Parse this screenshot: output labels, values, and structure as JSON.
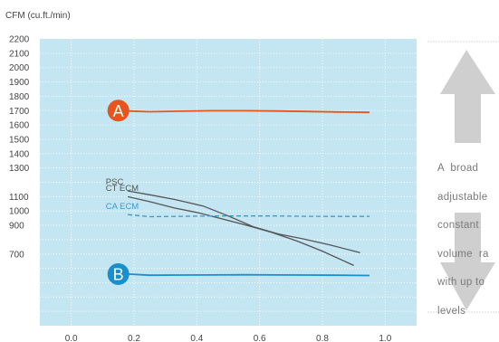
{
  "chart_data": {
    "type": "line",
    "title": "",
    "xlabel": "",
    "ylabel": "CFM (cu.ft./min)",
    "xlim": [
      -0.1,
      1.1
    ],
    "ylim": [
      200,
      2200
    ],
    "x_ticks": [
      0.0,
      0.2,
      0.4,
      0.6,
      0.8,
      1.0
    ],
    "x_tick_labels": [
      "0.0",
      "0.2",
      "0.4",
      "0.6",
      "0.8",
      "1.0"
    ],
    "y_ticks": [
      2200,
      2100,
      2000,
      1900,
      1800,
      1700,
      1600,
      1500,
      1400,
      1300,
      1100,
      1000,
      900,
      700
    ],
    "y_tick_labels": [
      "2200",
      "2100",
      "2000",
      "1900",
      "1800",
      "1700",
      "1600",
      "1500",
      "1400",
      "1300",
      "1100",
      "1000",
      "900",
      "700"
    ],
    "grid": true,
    "series": [
      {
        "name": "A",
        "color": "#e8541e",
        "style": "solid",
        "x": [
          0.18,
          0.25,
          0.35,
          0.45,
          0.55,
          0.65,
          0.75,
          0.85,
          0.95
        ],
        "y": [
          1697,
          1692,
          1696,
          1699,
          1699,
          1697,
          1694,
          1690,
          1688
        ]
      },
      {
        "name": "PSC",
        "color": "#555555",
        "style": "solid",
        "x": [
          0.18,
          0.25,
          0.33,
          0.42,
          0.5,
          0.58,
          0.66,
          0.74,
          0.82,
          0.92
        ],
        "y": [
          1140,
          1113,
          1080,
          1035,
          965,
          890,
          840,
          805,
          765,
          710
        ]
      },
      {
        "name": "CT ECM",
        "color": "#555555",
        "style": "solid",
        "x": [
          0.18,
          0.25,
          0.33,
          0.4,
          0.48,
          0.56,
          0.64,
          0.72,
          0.8,
          0.9
        ],
        "y": [
          1100,
          1065,
          1020,
          990,
          945,
          900,
          850,
          790,
          720,
          620
        ]
      },
      {
        "name": "CA ECM",
        "color": "#3a9ad0",
        "style": "dashed",
        "x": [
          0.18,
          0.25,
          0.35,
          0.45,
          0.55,
          0.65,
          0.75,
          0.85,
          0.95
        ],
        "y": [
          975,
          960,
          963,
          965,
          965,
          965,
          963,
          962,
          962
        ]
      },
      {
        "name": "B",
        "color": "#1a8fd0",
        "style": "solid",
        "x": [
          0.18,
          0.25,
          0.35,
          0.45,
          0.55,
          0.65,
          0.75,
          0.85,
          0.95
        ],
        "y": [
          560,
          552,
          553,
          554,
          555,
          554,
          553,
          552,
          550
        ]
      }
    ],
    "markers": [
      {
        "label": "A",
        "x": 0.15,
        "y": 1700,
        "color": "#e8541e"
      },
      {
        "label": "B",
        "x": 0.15,
        "y": 560,
        "color": "#1a8fd0"
      }
    ],
    "annotations": [
      {
        "text": "PSC",
        "x": 0.11,
        "y": 1185,
        "color": "#555555"
      },
      {
        "text": "CT ECM",
        "x": 0.11,
        "y": 1140,
        "color": "#555555"
      },
      {
        "text": "CA ECM",
        "x": 0.11,
        "y": 1015,
        "color": "#3a9ad0"
      }
    ]
  },
  "side_note": {
    "lines": [
      "A  broad",
      "adjustable",
      "constant",
      "volume  ra",
      "with up to",
      "levels"
    ]
  },
  "colors": {
    "plot_background": "#c3e6f2",
    "arrow": "#cfcfcf"
  }
}
